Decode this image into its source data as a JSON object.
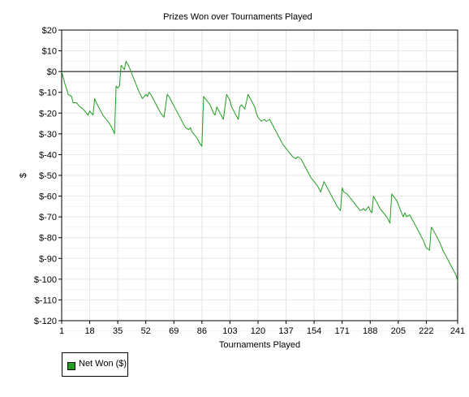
{
  "chart_data": {
    "type": "line",
    "title": "Prizes Won over Tournaments Played",
    "xlabel": "Tournaments Played",
    "ylabel": "$",
    "xlim": [
      1,
      241
    ],
    "ylim": [
      -120,
      20
    ],
    "x_ticks": [
      1,
      18,
      35,
      52,
      69,
      86,
      103,
      120,
      137,
      154,
      171,
      188,
      205,
      222,
      241
    ],
    "y_ticks": [
      20,
      10,
      0,
      -10,
      -20,
      -30,
      -40,
      -50,
      -60,
      -70,
      -80,
      -90,
      -100,
      -110,
      -120
    ],
    "y_tick_labels": [
      "$20",
      "$10",
      "$0",
      "$-10",
      "$-20",
      "$-30",
      "$-40",
      "$-50",
      "$-60",
      "$-70",
      "$-80",
      "$-90",
      "$-100",
      "$-110",
      "$-120"
    ],
    "grid": true,
    "zero_line": true,
    "legend_position": "bottom-left",
    "series": [
      {
        "name": "Net Won ($)",
        "color": "#1f9e1f",
        "x": [
          1,
          3,
          5,
          7,
          8,
          10,
          12,
          14,
          15,
          17,
          18,
          19,
          20,
          21,
          22,
          24,
          26,
          28,
          30,
          32,
          33,
          34,
          35,
          36,
          37,
          38,
          39,
          40,
          42,
          44,
          46,
          48,
          50,
          52,
          53,
          54,
          55,
          57,
          59,
          61,
          63,
          65,
          66,
          68,
          70,
          72,
          74,
          76,
          78,
          79,
          80,
          81,
          83,
          85,
          86,
          87,
          89,
          91,
          93,
          94,
          95,
          97,
          99,
          101,
          103,
          104,
          106,
          108,
          109,
          110,
          112,
          114,
          116,
          118,
          119,
          120,
          122,
          124,
          125,
          127,
          129,
          131,
          133,
          135,
          137,
          138,
          140,
          141,
          143,
          144,
          146,
          148,
          150,
          152,
          154,
          156,
          158,
          160,
          162,
          164,
          166,
          168,
          170,
          171,
          172,
          174,
          176,
          178,
          180,
          182,
          184,
          185,
          187,
          188,
          189,
          190,
          192,
          194,
          196,
          198,
          200,
          201,
          202,
          204,
          206,
          208,
          209,
          210,
          212,
          214,
          216,
          218,
          220,
          222,
          224,
          225,
          226,
          228,
          230,
          232,
          234,
          236,
          238,
          240,
          241
        ],
        "values": [
          0,
          -6,
          -11,
          -12,
          -15,
          -15,
          -17,
          -18,
          -19,
          -21,
          -19,
          -20,
          -21,
          -13,
          -15,
          -18,
          -21,
          -23,
          -25,
          -28,
          -30,
          -7,
          -8,
          -7,
          3,
          2,
          1,
          5,
          2,
          -2,
          -6,
          -10,
          -13,
          -11,
          -12,
          -10,
          -11,
          -14,
          -17,
          -20,
          -22,
          -11,
          -12,
          -15,
          -18,
          -21,
          -24,
          -27,
          -28,
          -27,
          -29,
          -30,
          -32,
          -35,
          -36,
          -12,
          -14,
          -16,
          -20,
          -21,
          -17,
          -20,
          -23,
          -11,
          -14,
          -17,
          -20,
          -23,
          -17,
          -16,
          -18,
          -11,
          -14,
          -17,
          -20,
          -22,
          -24,
          -23,
          -24,
          -23,
          -26,
          -29,
          -32,
          -35,
          -37,
          -38,
          -40,
          -41,
          -42,
          -41,
          -42,
          -45,
          -48,
          -51,
          -53,
          -55,
          -58,
          -53,
          -56,
          -59,
          -62,
          -65,
          -67,
          -56,
          -58,
          -59,
          -61,
          -63,
          -65,
          -67,
          -66,
          -67,
          -65,
          -67,
          -68,
          -60,
          -63,
          -66,
          -68,
          -70,
          -73,
          -59,
          -60,
          -62,
          -66,
          -70,
          -68,
          -70,
          -69,
          -72,
          -75,
          -78,
          -81,
          -85,
          -86,
          -75,
          -76,
          -79,
          -82,
          -86,
          -89,
          -92,
          -95,
          -98,
          -101
        ]
      }
    ]
  }
}
